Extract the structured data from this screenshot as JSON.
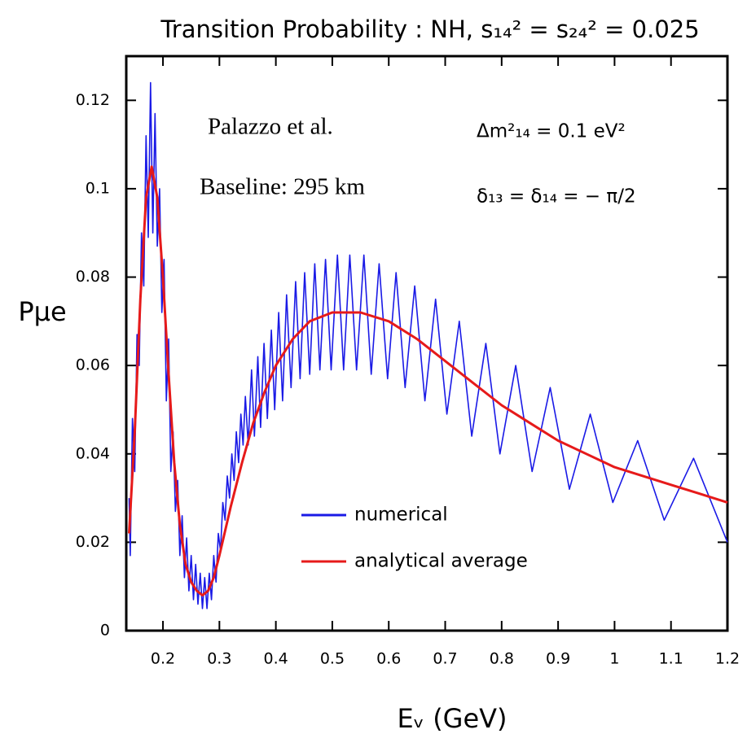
{
  "chart_data": {
    "type": "line",
    "title": "Transition Probability : NH, s₁₄² = s₂₄² = 0.025",
    "x_label": "Eᵥ (GeV)",
    "y_label": "Pμe",
    "annotations": [
      "Palazzo et al.",
      "Baseline: 295 km",
      "Δm²₁₄ = 0.1 eV²",
      "δ₁₃ = δ₁₄ = − π/2"
    ],
    "xlim": [
      0.135,
      1.2
    ],
    "ylim": [
      0,
      0.13
    ],
    "xticks": [
      0.2,
      0.3,
      0.4,
      0.5,
      0.6,
      0.7,
      0.8,
      0.9,
      1,
      1.1,
      1.2
    ],
    "yticks": [
      0,
      0.02,
      0.04,
      0.06,
      0.08,
      0.1,
      0.12
    ],
    "legend": "lower-center",
    "series": [
      {
        "name": "numerical",
        "color": "#1a1ae6",
        "x": [
          0.14,
          0.142,
          0.146,
          0.15,
          0.154,
          0.158,
          0.162,
          0.166,
          0.17,
          0.174,
          0.178,
          0.182,
          0.186,
          0.19,
          0.194,
          0.198,
          0.202,
          0.206,
          0.21,
          0.214,
          0.218,
          0.222,
          0.226,
          0.23,
          0.234,
          0.238,
          0.242,
          0.246,
          0.25,
          0.254,
          0.258,
          0.262,
          0.266,
          0.27,
          0.274,
          0.278,
          0.282,
          0.286,
          0.29,
          0.294,
          0.298,
          0.302,
          0.306,
          0.31,
          0.314,
          0.318,
          0.322,
          0.326,
          0.33,
          0.334,
          0.338,
          0.342,
          0.346,
          0.351,
          0.357,
          0.362,
          0.368,
          0.373,
          0.379,
          0.385,
          0.392,
          0.398,
          0.405,
          0.412,
          0.419,
          0.427,
          0.435,
          0.443,
          0.451,
          0.46,
          0.469,
          0.478,
          0.488,
          0.498,
          0.509,
          0.52,
          0.531,
          0.543,
          0.556,
          0.569,
          0.583,
          0.598,
          0.613,
          0.629,
          0.646,
          0.664,
          0.683,
          0.703,
          0.725,
          0.747,
          0.772,
          0.797,
          0.825,
          0.854,
          0.886,
          0.92,
          0.957,
          0.997,
          1.041,
          1.088,
          1.14,
          1.2
        ],
        "values": [
          0.03,
          0.017,
          0.048,
          0.036,
          0.067,
          0.06,
          0.09,
          0.078,
          0.112,
          0.089,
          0.124,
          0.09,
          0.117,
          0.087,
          0.1,
          0.072,
          0.084,
          0.052,
          0.066,
          0.036,
          0.045,
          0.027,
          0.034,
          0.017,
          0.026,
          0.012,
          0.021,
          0.009,
          0.017,
          0.007,
          0.015,
          0.006,
          0.013,
          0.005,
          0.012,
          0.005,
          0.013,
          0.007,
          0.017,
          0.011,
          0.022,
          0.018,
          0.029,
          0.025,
          0.035,
          0.03,
          0.04,
          0.034,
          0.045,
          0.038,
          0.049,
          0.042,
          0.053,
          0.042,
          0.059,
          0.044,
          0.062,
          0.046,
          0.065,
          0.048,
          0.068,
          0.05,
          0.072,
          0.052,
          0.076,
          0.055,
          0.079,
          0.057,
          0.081,
          0.058,
          0.083,
          0.059,
          0.084,
          0.059,
          0.085,
          0.059,
          0.085,
          0.059,
          0.085,
          0.058,
          0.083,
          0.057,
          0.081,
          0.055,
          0.078,
          0.052,
          0.075,
          0.049,
          0.07,
          0.044,
          0.065,
          0.04,
          0.06,
          0.036,
          0.055,
          0.032,
          0.049,
          0.029,
          0.043,
          0.025,
          0.039,
          0.02
        ]
      },
      {
        "name": "analytical average",
        "color": "#e61a1a",
        "x": [
          0.14,
          0.15,
          0.16,
          0.17,
          0.18,
          0.19,
          0.2,
          0.21,
          0.22,
          0.23,
          0.24,
          0.25,
          0.26,
          0.27,
          0.28,
          0.29,
          0.3,
          0.32,
          0.34,
          0.36,
          0.38,
          0.4,
          0.43,
          0.46,
          0.5,
          0.55,
          0.6,
          0.65,
          0.7,
          0.75,
          0.8,
          0.85,
          0.9,
          0.95,
          1,
          1.05,
          1.1,
          1.15,
          1.2
        ],
        "values": [
          0.022,
          0.045,
          0.075,
          0.098,
          0.105,
          0.098,
          0.08,
          0.058,
          0.038,
          0.024,
          0.015,
          0.011,
          0.009,
          0.008,
          0.009,
          0.012,
          0.017,
          0.028,
          0.038,
          0.047,
          0.054,
          0.06,
          0.066,
          0.07,
          0.072,
          0.072,
          0.07,
          0.066,
          0.061,
          0.056,
          0.051,
          0.047,
          0.043,
          0.04,
          0.037,
          0.035,
          0.033,
          0.031,
          0.029
        ]
      }
    ]
  }
}
